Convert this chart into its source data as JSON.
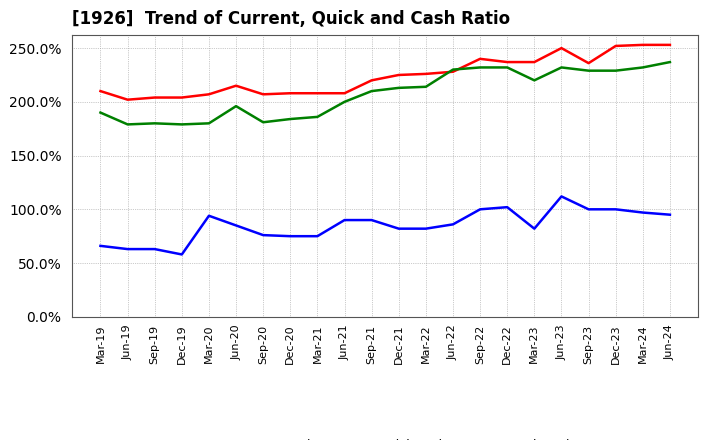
{
  "title": "[1926]  Trend of Current, Quick and Cash Ratio",
  "labels": [
    "Mar-19",
    "Jun-19",
    "Sep-19",
    "Dec-19",
    "Mar-20",
    "Jun-20",
    "Sep-20",
    "Dec-20",
    "Mar-21",
    "Jun-21",
    "Sep-21",
    "Dec-21",
    "Mar-22",
    "Jun-22",
    "Sep-22",
    "Dec-22",
    "Mar-23",
    "Jun-23",
    "Sep-23",
    "Dec-23",
    "Mar-24",
    "Jun-24"
  ],
  "current_ratio": [
    210,
    202,
    204,
    204,
    207,
    215,
    207,
    208,
    208,
    208,
    220,
    225,
    226,
    228,
    240,
    237,
    237,
    250,
    236,
    252,
    253,
    253
  ],
  "quick_ratio": [
    190,
    179,
    180,
    179,
    180,
    196,
    181,
    184,
    186,
    200,
    210,
    213,
    214,
    230,
    232,
    232,
    220,
    232,
    229,
    229,
    232,
    237
  ],
  "cash_ratio": [
    66,
    63,
    63,
    58,
    94,
    85,
    76,
    75,
    75,
    90,
    90,
    82,
    82,
    86,
    100,
    102,
    82,
    112,
    100,
    100,
    97,
    95
  ],
  "current_color": "#ff0000",
  "quick_color": "#008000",
  "cash_color": "#0000ff",
  "ylim": [
    0,
    262
  ],
  "yticks": [
    0,
    50,
    100,
    150,
    200,
    250
  ],
  "background_color": "#ffffff",
  "plot_bg_color": "#ffffff",
  "grid_color": "#999999",
  "title_fontsize": 12,
  "tick_fontsize": 8,
  "legend_fontsize": 9,
  "linewidth": 1.8
}
